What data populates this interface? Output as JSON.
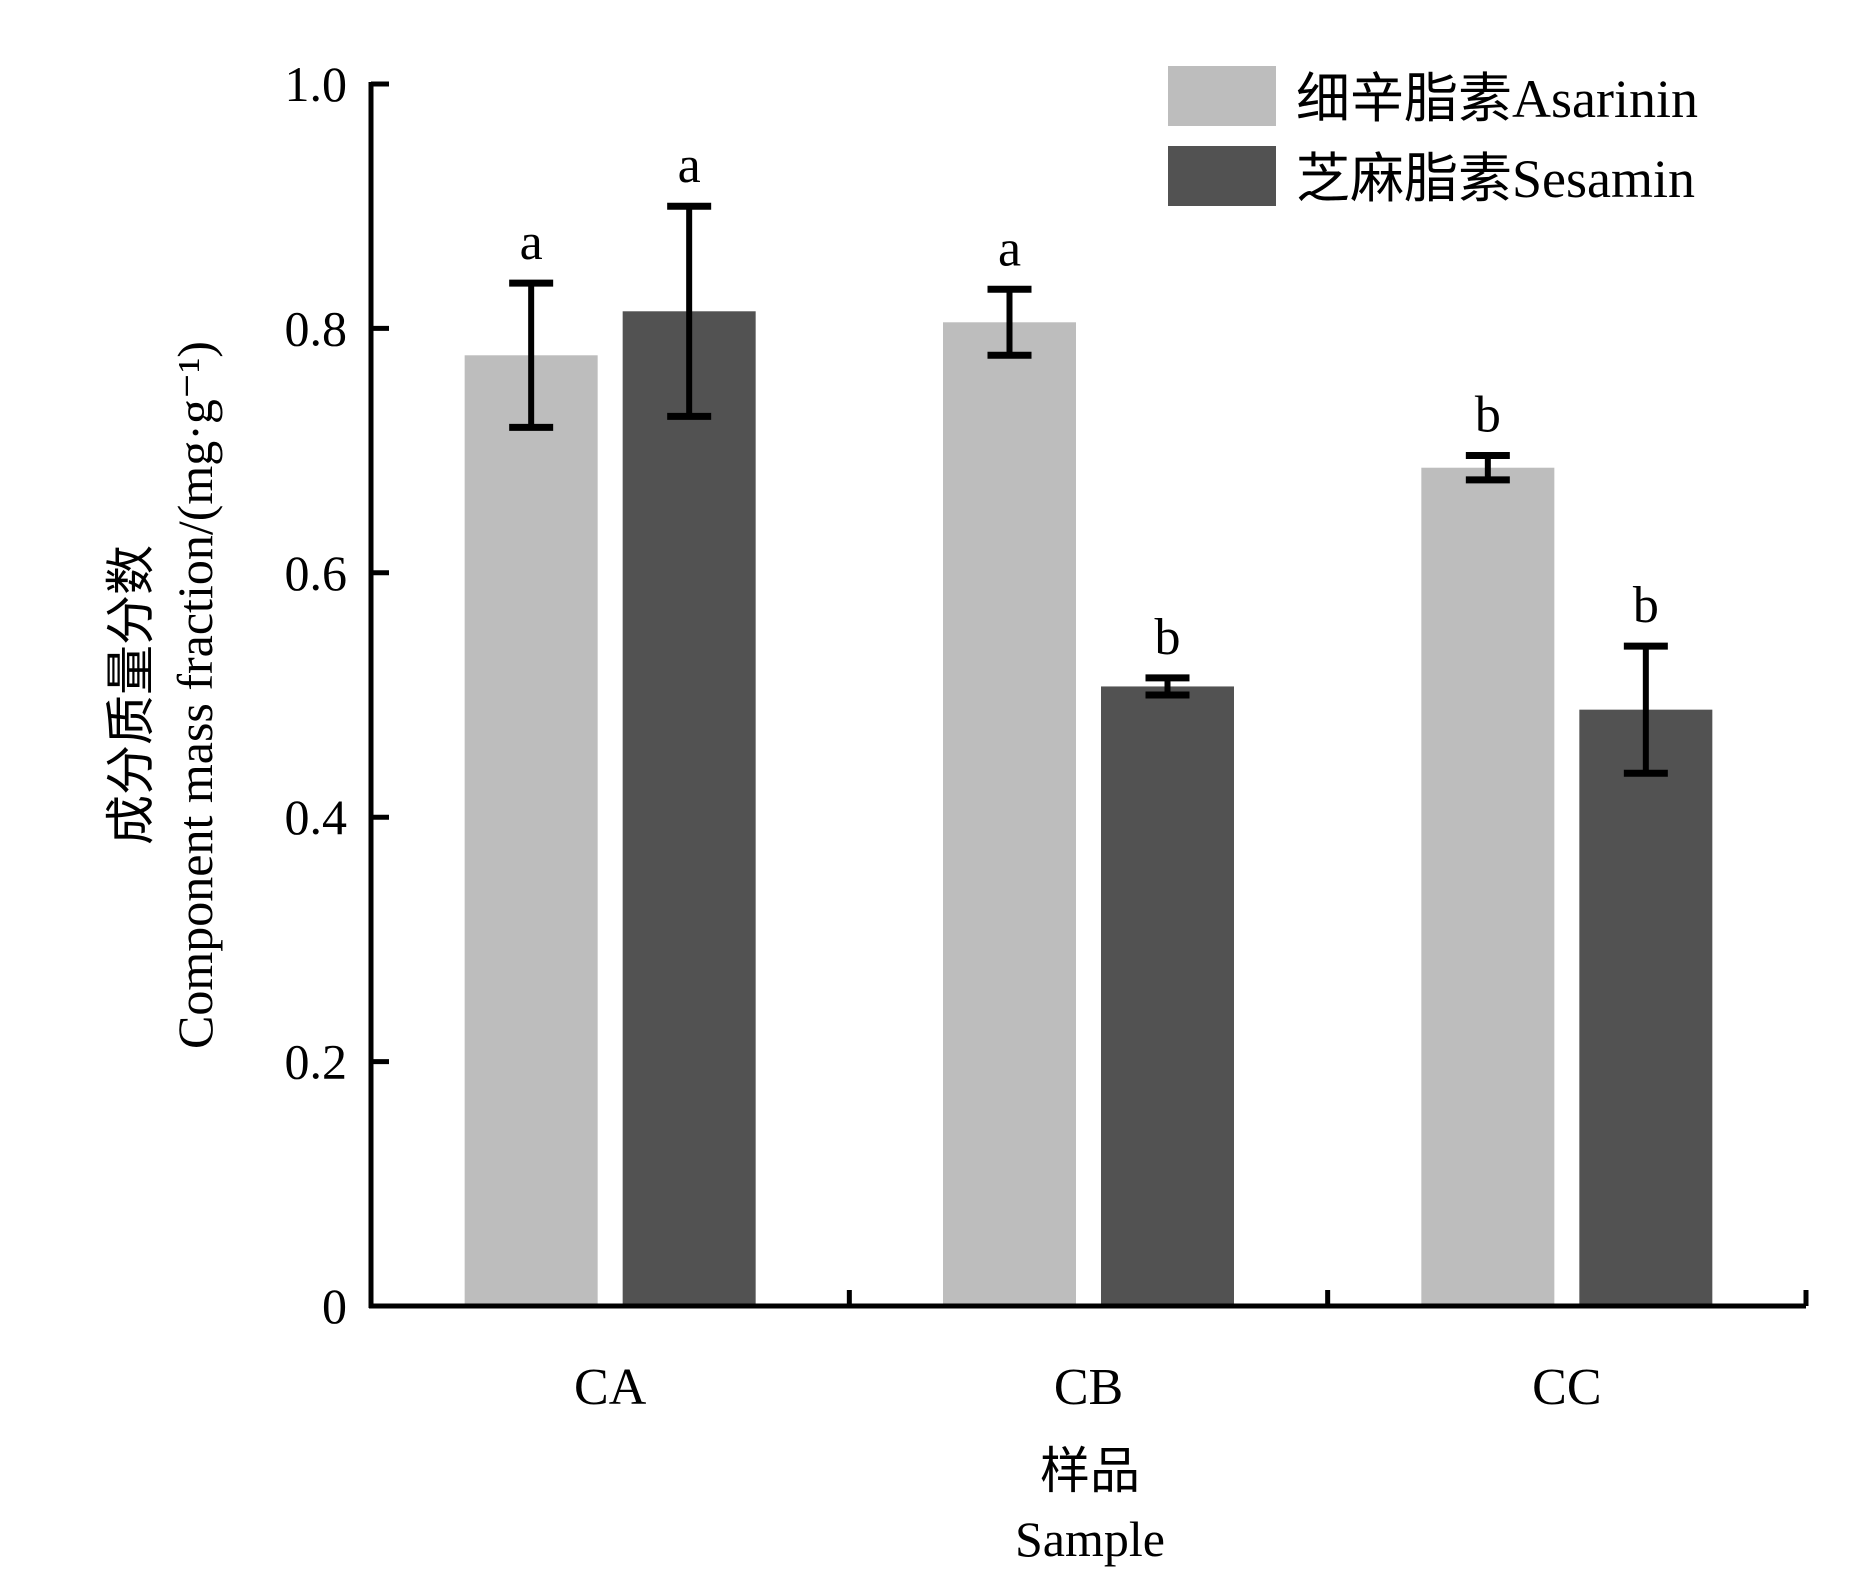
{
  "chart_data": {
    "type": "bar",
    "categories": [
      "CA",
      "CB",
      "CC"
    ],
    "series": [
      {
        "name": "细辛脂素Asarinin",
        "color": "#bdbdbd",
        "values": [
          0.778,
          0.805,
          0.686
        ],
        "errors": [
          0.059,
          0.027,
          0.01
        ],
        "labels": [
          "a",
          "a",
          "b"
        ]
      },
      {
        "name": "芝麻脂素Sesamin",
        "color": "#525252",
        "values": [
          0.814,
          0.507,
          0.488
        ],
        "errors": [
          0.086,
          0.007,
          0.052
        ],
        "labels": [
          "a",
          "b",
          "b"
        ]
      }
    ],
    "ylim": [
      0,
      1.0
    ],
    "yticks": [
      "0",
      "0.2",
      "0.4",
      "0.6",
      "0.8",
      "1.0"
    ],
    "ytick_values": [
      0,
      0.2,
      0.4,
      0.6,
      0.8,
      1.0
    ],
    "ylabel": [
      "成分质量分数",
      "Component mass fraction/(mg·g⁻¹)"
    ],
    "xlabel": [
      "样品",
      "Sample"
    ],
    "legend_position": "top-right",
    "grid": false
  }
}
